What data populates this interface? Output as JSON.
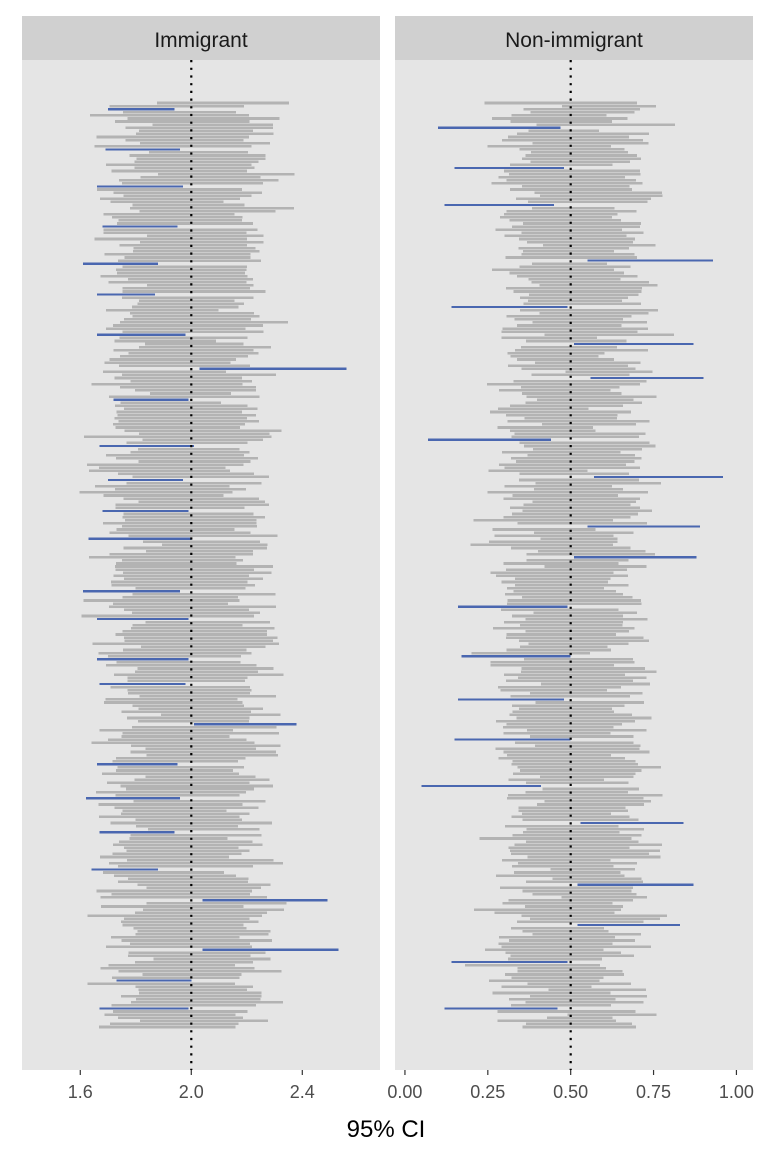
{
  "chart_data": {
    "type": "interval",
    "xlabel": "95% CI",
    "ylabel": "",
    "interval_color": "#b3b3b3",
    "miss_color": "#4a67b0",
    "panel_background": "#e5e5e5",
    "strip_background": "#d0d0d0",
    "panels": [
      {
        "label": "Immigrant",
        "true_value": 2.0,
        "xlim": [
          1.39,
          2.68
        ],
        "ticks": [
          1.6,
          2.0,
          2.4
        ],
        "tick_labels": [
          "1.6",
          "2.0",
          "2.4"
        ],
        "n_intervals": 300,
        "seed": 7,
        "center_mean": 1.99,
        "center_sd": 0.045,
        "half_width_mean": 0.24,
        "half_width_sd": 0.03,
        "highlighted": [
          [
            1.7,
            1.94
          ],
          [
            1.69,
            1.96
          ],
          [
            1.66,
            1.97
          ],
          [
            1.68,
            1.95
          ],
          [
            1.61,
            1.88
          ],
          [
            1.66,
            1.87
          ],
          [
            1.66,
            1.98
          ],
          [
            2.03,
            2.56
          ],
          [
            1.72,
            1.99
          ],
          [
            1.67,
            2.01
          ],
          [
            1.7,
            1.97
          ],
          [
            1.68,
            1.99
          ],
          [
            1.63,
            2.0
          ],
          [
            1.61,
            1.96
          ],
          [
            1.66,
            1.99
          ],
          [
            1.66,
            1.99
          ],
          [
            1.67,
            1.98
          ],
          [
            2.01,
            2.38
          ],
          [
            1.66,
            1.95
          ],
          [
            1.62,
            1.96
          ],
          [
            1.67,
            1.94
          ],
          [
            1.64,
            1.88
          ],
          [
            2.04,
            2.49
          ],
          [
            2.04,
            2.53
          ],
          [
            1.73,
            2.0
          ],
          [
            1.67,
            1.99
          ]
        ]
      },
      {
        "label": "Non-immigrant",
        "true_value": 0.5,
        "xlim": [
          -0.03,
          1.05
        ],
        "ticks": [
          0.0,
          0.25,
          0.5,
          0.75,
          1.0
        ],
        "tick_labels": [
          "0.00",
          "0.25",
          "0.50",
          "0.75",
          "1.00"
        ],
        "n_intervals": 300,
        "seed": 13,
        "center_mean": 0.5,
        "center_sd": 0.045,
        "half_width_mean": 0.175,
        "half_width_sd": 0.025,
        "highlighted": [
          [
            0.1,
            0.47
          ],
          [
            0.15,
            0.48
          ],
          [
            0.12,
            0.45
          ],
          [
            0.55,
            0.93
          ],
          [
            0.14,
            0.49
          ],
          [
            0.51,
            0.87
          ],
          [
            0.56,
            0.9
          ],
          [
            0.07,
            0.44
          ],
          [
            0.57,
            0.96
          ],
          [
            0.55,
            0.89
          ],
          [
            0.51,
            0.88
          ],
          [
            0.16,
            0.49
          ],
          [
            0.17,
            0.5
          ],
          [
            0.16,
            0.48
          ],
          [
            0.15,
            0.5
          ],
          [
            0.05,
            0.41
          ],
          [
            0.53,
            0.84
          ],
          [
            0.52,
            0.87
          ],
          [
            0.52,
            0.83
          ],
          [
            0.14,
            0.49
          ],
          [
            0.12,
            0.46
          ]
        ]
      }
    ]
  }
}
